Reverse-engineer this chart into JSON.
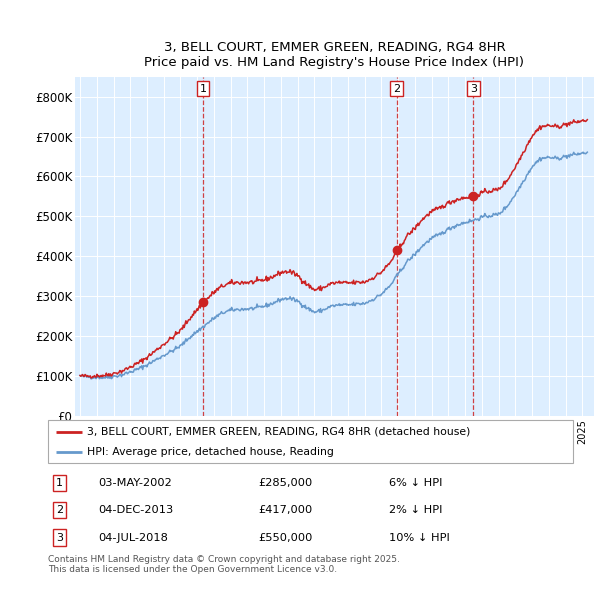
{
  "title_line1": "3, BELL COURT, EMMER GREEN, READING, RG4 8HR",
  "title_line2": "Price paid vs. HM Land Registry's House Price Index (HPI)",
  "ylim": [
    0,
    850000
  ],
  "yticks": [
    0,
    100000,
    200000,
    300000,
    400000,
    500000,
    600000,
    700000,
    800000
  ],
  "ytick_labels": [
    "£0",
    "£100K",
    "£200K",
    "£300K",
    "£400K",
    "£500K",
    "£600K",
    "£700K",
    "£800K"
  ],
  "xlim_start": 1994.7,
  "xlim_end": 2025.7,
  "hpi_color": "#6699cc",
  "price_color": "#cc2222",
  "plot_bg_color": "#ddeeff",
  "grid_color": "#ffffff",
  "legend_label_red": "3, BELL COURT, EMMER GREEN, READING, RG4 8HR (detached house)",
  "legend_label_blue": "HPI: Average price, detached house, Reading",
  "sale_points": [
    {
      "date_decimal": 2002.34,
      "price": 285000,
      "label": "1"
    },
    {
      "date_decimal": 2013.92,
      "price": 417000,
      "label": "2"
    },
    {
      "date_decimal": 2018.5,
      "price": 550000,
      "label": "3"
    }
  ],
  "footnote": "Contains HM Land Registry data © Crown copyright and database right 2025.\nThis data is licensed under the Open Government Licence v3.0.",
  "table_rows": [
    {
      "label": "1",
      "date": "03-MAY-2002",
      "price": "£285,000",
      "pct": "6% ↓ HPI"
    },
    {
      "label": "2",
      "date": "04-DEC-2013",
      "price": "£417,000",
      "pct": "2% ↓ HPI"
    },
    {
      "label": "3",
      "date": "04-JUL-2018",
      "price": "£550,000",
      "pct": "10% ↓ HPI"
    }
  ]
}
